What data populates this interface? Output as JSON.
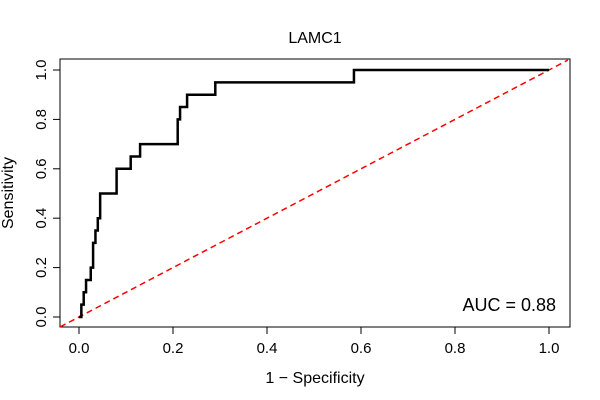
{
  "chart_data": {
    "type": "line",
    "title": "LAMC1",
    "xlabel": "1 − Specificity",
    "ylabel": "Sensitivity",
    "xlim": [
      0,
      1
    ],
    "ylim": [
      0,
      1
    ],
    "x_ticks": [
      "0.0",
      "0.2",
      "0.4",
      "0.6",
      "0.8",
      "1.0"
    ],
    "y_ticks": [
      "0.0",
      "0.2",
      "0.4",
      "0.6",
      "0.8",
      "1.0"
    ],
    "grid": false,
    "annotation": "AUC = 0.88",
    "series": [
      {
        "kind": "roc-curve",
        "color": "#000000",
        "x": [
          0.0,
          0.005,
          0.005,
          0.01,
          0.01,
          0.015,
          0.015,
          0.025,
          0.025,
          0.03,
          0.03,
          0.035,
          0.035,
          0.04,
          0.04,
          0.045,
          0.045,
          0.08,
          0.08,
          0.11,
          0.11,
          0.13,
          0.13,
          0.21,
          0.21,
          0.215,
          0.215,
          0.23,
          0.23,
          0.29,
          0.29,
          0.585,
          0.585,
          1.0
        ],
        "y": [
          0.0,
          0.0,
          0.05,
          0.05,
          0.1,
          0.1,
          0.15,
          0.15,
          0.2,
          0.2,
          0.3,
          0.3,
          0.35,
          0.35,
          0.4,
          0.4,
          0.5,
          0.5,
          0.6,
          0.6,
          0.65,
          0.65,
          0.7,
          0.7,
          0.8,
          0.8,
          0.85,
          0.85,
          0.9,
          0.9,
          0.95,
          0.95,
          1.0,
          1.0
        ]
      },
      {
        "kind": "reference-diagonal",
        "color": "#ff0000",
        "x": [
          0,
          1
        ],
        "y": [
          0,
          1
        ]
      }
    ]
  }
}
